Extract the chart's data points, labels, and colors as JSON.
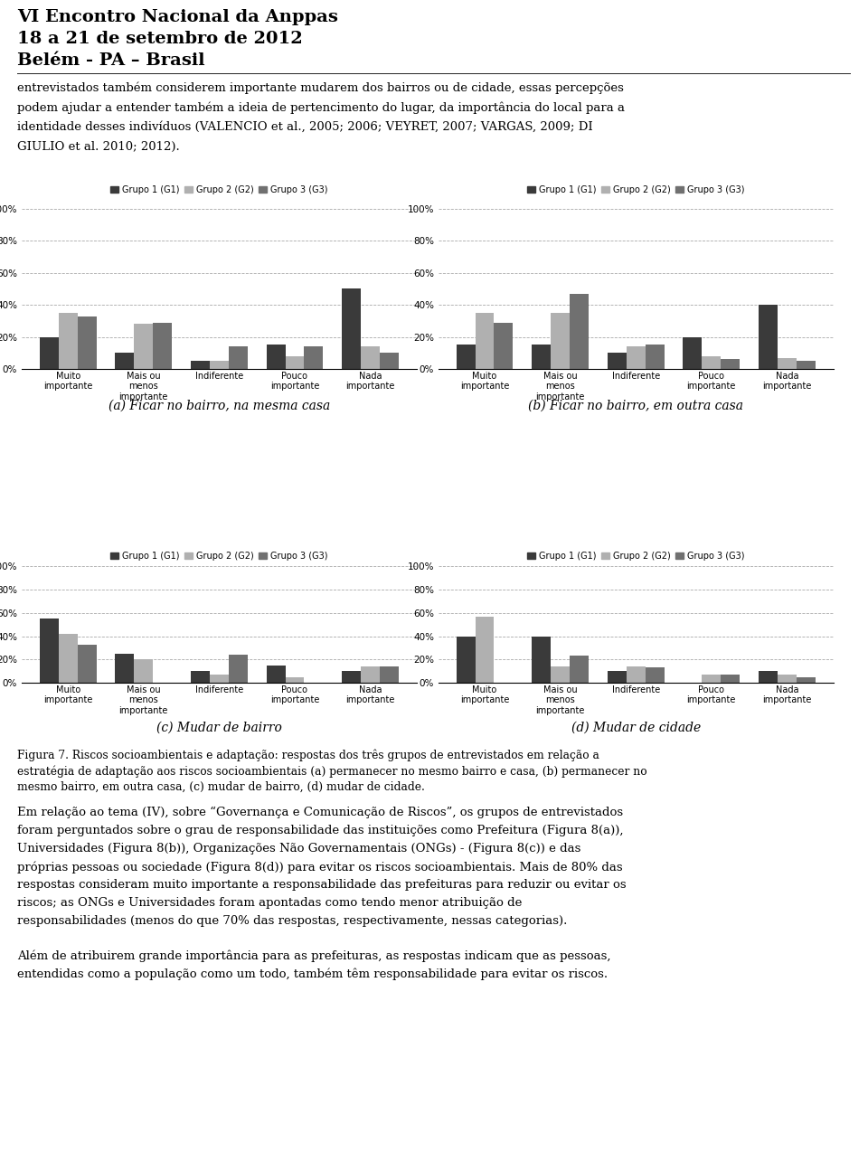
{
  "header_lines": [
    "VI Encontro Nacional da Anppas",
    "18 a 21 de setembro de 2012",
    "Belém - PA – Brasil"
  ],
  "body_text": [
    "entrevistados também considerem importante mudarem dos bairros ou de cidade, essas percepções",
    "podem ajudar a entender também a ideia de pertencimento do lugar, da importância do local para a",
    "identidade desses indivíduos (VALENCIO et al., 2005; 2006; VEYRET, 2007; VARGAS, 2009; DI",
    "GIULIO et al. 2010; 2012)."
  ],
  "categories": [
    "Muito\nimportante",
    "Mais ou\nmenos\nimportante",
    "Indiferente",
    "Pouco\nimportante",
    "Nada\nimportante"
  ],
  "legend_labels": [
    "Grupo 1 (G1)",
    "Grupo 2 (G2)",
    "Grupo 3 (G3)"
  ],
  "colors": [
    "#3a3a3a",
    "#b0b0b0",
    "#707070"
  ],
  "charts": [
    {
      "title": "(a) Ficar no bairro, na mesma casa",
      "G1": [
        20,
        10,
        5,
        15,
        50
      ],
      "G2": [
        35,
        28,
        5,
        8,
        14
      ],
      "G3": [
        33,
        29,
        14,
        14,
        10
      ]
    },
    {
      "title": "(b) Ficar no bairro, em outra casa",
      "G1": [
        15,
        15,
        10,
        20,
        40
      ],
      "G2": [
        35,
        35,
        14,
        8,
        7
      ],
      "G3": [
        29,
        47,
        15,
        6,
        5
      ]
    },
    {
      "title": "(c) Mudar de bairro",
      "G1": [
        55,
        25,
        10,
        15,
        10
      ],
      "G2": [
        42,
        20,
        7,
        5,
        14
      ],
      "G3": [
        33,
        0,
        24,
        0,
        14
      ]
    },
    {
      "title": "(d) Mudar de cidade",
      "G1": [
        40,
        40,
        10,
        0,
        10
      ],
      "G2": [
        57,
        14,
        14,
        7,
        7
      ],
      "G3": [
        0,
        23,
        13,
        7,
        5
      ]
    }
  ],
  "caption": "Figura 7. Riscos socioambientais e adaptação: respostas dos três grupos de entrevistados em relação a\nestr atégia de adaptação aos riscos socioambientais (a) permanecer no mesmo bairro e casa, (b) permanecer no\nmesmo bairro, em outra casa, (c) mudar de bairro, (d) mudar de cidade.",
  "following_paragraphs": [
    "Em relação ao tema (IV), sobre “Governança e Comunicação de Riscos”, os grupos de entrevistados foram perguntados sobre o grau de responsabilidade das instituições como Prefeitura (Figura 8(a)), Universidades (Figura 8(b)), Organizações Não Governamentais (ONGs) - (Figura 8(c)) e das próprias pessoas ou sociedade (Figura 8(d)) para evitar os riscos socioambientais. Mais de 80% das respostas consideram muito importante a responsabilidade das prefeituras para reduzir ou evitar os riscos; as ONGs e Universidades foram apontadas como tendo menor atribuição de responsabilidades (menos do que 70% das respostas, respectivamente, nessas categorias).",
    "Além de atribuirem grande importância para as prefeituras, as respostas indicam que as pessoas, entendidas como a população como um todo, também têm responsabilidade para evitar os riscos."
  ]
}
